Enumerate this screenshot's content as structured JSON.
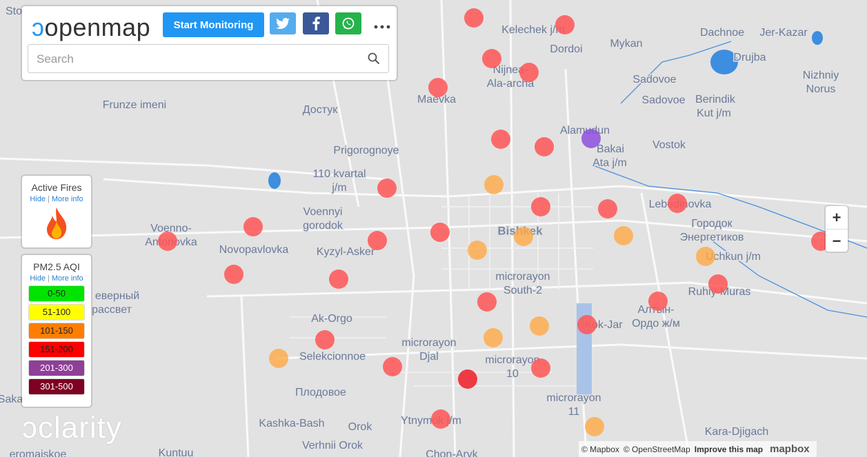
{
  "header": {
    "logo": "openmap",
    "button": "Start Monitoring",
    "search_placeholder": "Search"
  },
  "fires_panel": {
    "title": "Active Fires",
    "hide": "Hide",
    "more_info": "More info"
  },
  "aqi_panel": {
    "title": "PM2.5 AQI",
    "hide": "Hide",
    "more_info": "More info",
    "levels": [
      {
        "label": "0-50",
        "color": "#00e400"
      },
      {
        "label": "51-100",
        "color": "#ffff00"
      },
      {
        "label": "101-150",
        "color": "#ff7e00"
      },
      {
        "label": "151-200",
        "color": "#ff0000"
      },
      {
        "label": "201-300",
        "color": "#8f3f97"
      },
      {
        "label": "301-500",
        "color": "#7e0023"
      }
    ]
  },
  "map": {
    "city": "Bishkek",
    "places": [
      "Kelechek j/m",
      "Dordoi",
      "Mykan",
      "Dachnoe",
      "Jer-Kazar",
      "Drujba",
      "Nizhniy",
      "Norus",
      "Nijnea-",
      "Ala-archa",
      "Maevka",
      "Sadovoe",
      "Sadovoe",
      "Berindik",
      "Kut j/m",
      "Frunze imeni",
      "Достук",
      "Alamudun",
      "Bakai",
      "Ata j/m",
      "Vostok",
      "Prigorognoye",
      "110 kvartal",
      "j/m",
      "Voenno-",
      "Antonovka",
      "Voennyi",
      "gorodok",
      "Novopavlovka",
      "Kyzyl-Asker",
      "Lebedinovka",
      "Городок",
      "Энергетиков",
      "Uchkun j/m",
      "microrayon",
      "South-2",
      "Ruhiy-Muras",
      "Алтын-",
      "Ордо ж/м",
      "еверный",
      "рассвет",
      "Ak-Orgo",
      "Kok-Jar",
      "microrayon",
      "Djal",
      "Selekcionnoe",
      "microrayon",
      "10",
      "Плодовое",
      "microrayon",
      "11",
      "Ytnymok j/m",
      "Kashka-Bash",
      "Orok",
      "Verhnii Orok",
      "Kara-Djigach",
      "Chon-Aryk",
      "Kuntuu",
      "eromaiskoe",
      "Saka",
      "Sto"
    ]
  },
  "footer": {
    "brand": "clarity",
    "attribution": [
      "© Mapbox",
      "© OpenStreetMap",
      "Improve this map"
    ],
    "mapbox": "mapbox"
  },
  "zoom": {
    "in": "+",
    "out": "−"
  }
}
